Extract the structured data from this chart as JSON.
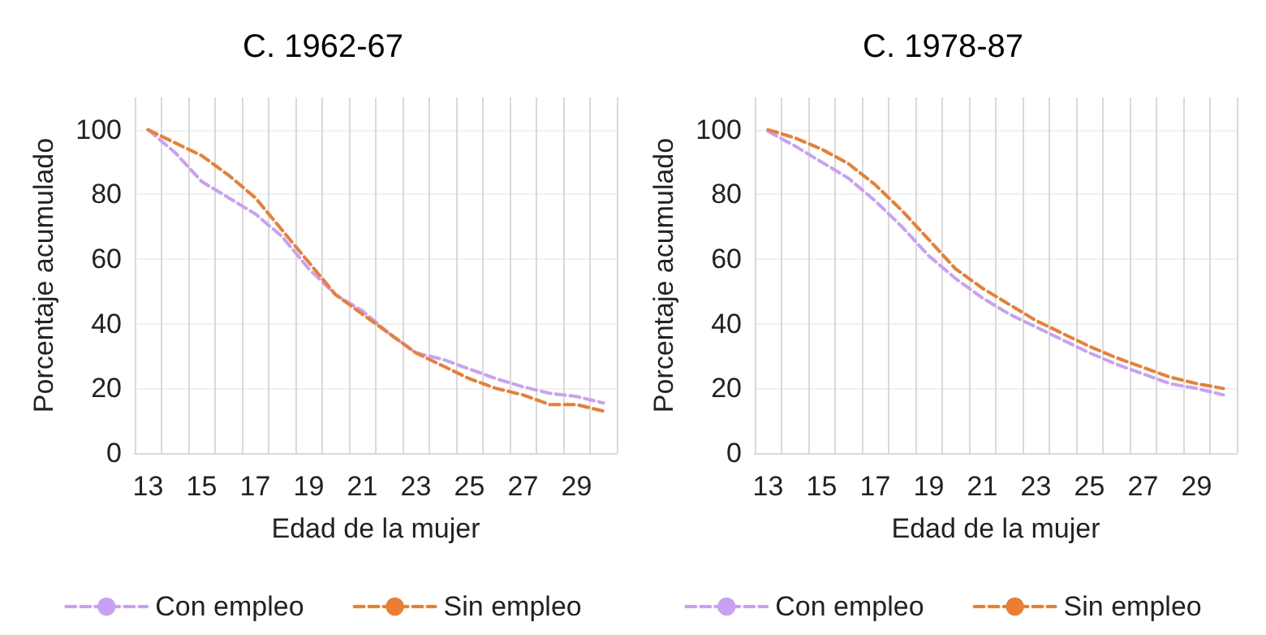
{
  "chart_data": [
    {
      "type": "line",
      "title": "C. 1962-67",
      "xlabel": "Edad de la mujer",
      "ylabel": "Porcentaje acumulado",
      "categories": [
        "13",
        null,
        "15",
        null,
        "17",
        null,
        "19",
        null,
        "21",
        null,
        "23",
        null,
        "25",
        null,
        "27",
        null,
        "29",
        null
      ],
      "ylim": [
        0,
        110
      ],
      "yticks": [
        0,
        20,
        40,
        60,
        80,
        100
      ],
      "grid": true,
      "legend": "bottom",
      "line_style": "dashed",
      "series": [
        {
          "name": "Con empleo",
          "color": "#c9a0f5",
          "values": [
            100,
            93,
            84,
            79,
            74,
            67,
            57,
            49,
            44,
            37,
            31,
            29,
            26,
            23,
            20.5,
            18.5,
            17.5,
            15.5
          ]
        },
        {
          "name": "Sin empleo",
          "color": "#ed7d31",
          "values": [
            100,
            96,
            92,
            86,
            79,
            69,
            59,
            49,
            43,
            37,
            31,
            27,
            23,
            20,
            18,
            15,
            15,
            13
          ]
        }
      ]
    },
    {
      "type": "line",
      "title": "C. 1978-87",
      "xlabel": "Edad de la mujer",
      "ylabel": "Porcentaje acumulado",
      "categories": [
        "13",
        null,
        "15",
        null,
        "17",
        null,
        "19",
        null,
        "21",
        null,
        "23",
        null,
        "25",
        null,
        "27",
        null,
        "29",
        null
      ],
      "ylim": [
        0,
        110
      ],
      "yticks": [
        0,
        20,
        40,
        60,
        80,
        100
      ],
      "grid": true,
      "legend": "bottom",
      "line_style": "dashed",
      "series": [
        {
          "name": "Con empleo",
          "color": "#c9a0f5",
          "values": [
            99.5,
            95,
            90,
            85,
            78,
            70,
            61,
            54,
            48,
            43,
            39,
            35,
            31,
            27.5,
            24.5,
            21.5,
            20,
            18
          ]
        },
        {
          "name": "Sin empleo",
          "color": "#ed7d31",
          "values": [
            100,
            97.5,
            94,
            89.5,
            83,
            75,
            66,
            57,
            51,
            46,
            41,
            37,
            33,
            29.5,
            26.5,
            23.5,
            21.5,
            20
          ]
        }
      ]
    }
  ]
}
